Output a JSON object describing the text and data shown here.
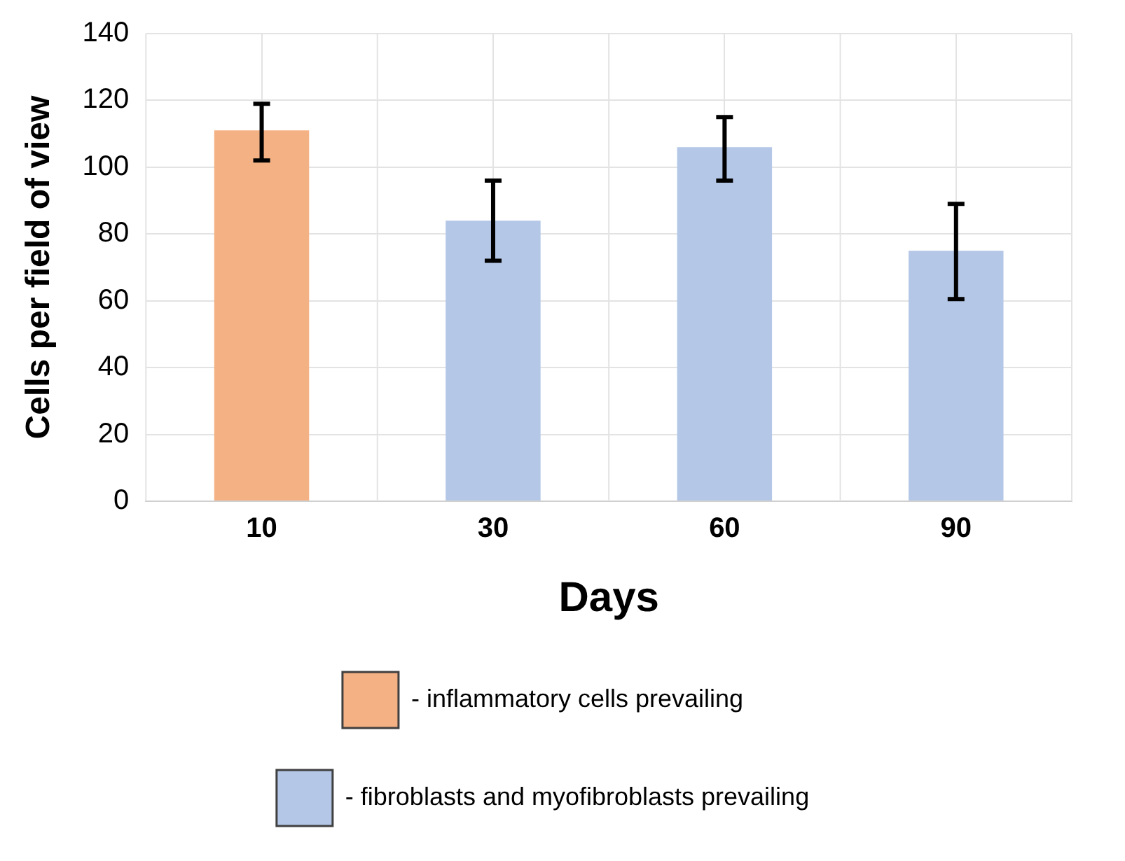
{
  "chart_data": {
    "type": "bar",
    "xlabel": "Days",
    "ylabel": "Cells per field of view",
    "categories": [
      "10",
      "30",
      "60",
      "90"
    ],
    "series": [
      {
        "name": "- inflammatory cells prevailing",
        "color": "#f4b183",
        "values": [
          111,
          null,
          null,
          null
        ],
        "errors": [
          [
            102,
            119
          ],
          null,
          null,
          null
        ]
      },
      {
        "name": "- fibroblasts and myofibroblasts prevailing",
        "color": "#b4c7e7",
        "values": [
          null,
          84,
          106,
          75
        ],
        "errors": [
          null,
          [
            72,
            96
          ],
          [
            96,
            115
          ],
          [
            60.5,
            89
          ]
        ]
      }
    ],
    "ylim": [
      0,
      140
    ],
    "yticks": [
      0,
      20,
      40,
      60,
      80,
      100,
      120,
      140
    ],
    "grid": true,
    "legend": "bottom"
  }
}
